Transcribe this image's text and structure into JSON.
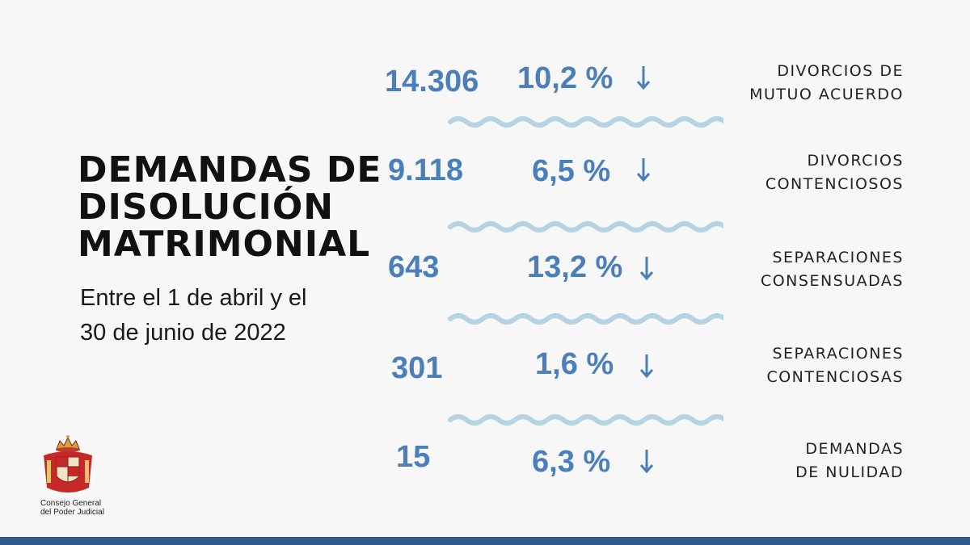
{
  "title": {
    "line1": "DEMANDAS DE",
    "line2": "DISOLUCIÓN",
    "line3": "MATRIMONIAL"
  },
  "subtitle": {
    "line1": "Entre el 1 de abril y el",
    "line2": "30 de junio de 2022"
  },
  "rows": [
    {
      "value": "14.306",
      "percent": "10,2 %",
      "trend": "down",
      "label_line1": "DIVORCIOS DE",
      "label_line2": "MUTUO ACUERDO"
    },
    {
      "value": "9.118",
      "percent": "6,5 %",
      "trend": "down",
      "label_line1": "DIVORCIOS",
      "label_line2": "CONTENCIOSOS"
    },
    {
      "value": "643",
      "percent": "13,2 %",
      "trend": "down",
      "label_line1": "SEPARACIONES",
      "label_line2": "CONSENSUADAS"
    },
    {
      "value": "301",
      "percent": "1,6 %",
      "trend": "down",
      "label_line1": "SEPARACIONES",
      "label_line2": "CONTENCIOSAS"
    },
    {
      "value": "15",
      "percent": "6,3 %",
      "trend": "down",
      "label_line1": "DEMANDAS",
      "label_line2": "DE NULIDAD"
    }
  ],
  "logo": {
    "line1": "Consejo General",
    "line2": "del Poder Judicial",
    "icon": "coat-of-arms-icon"
  },
  "colors": {
    "accent": "#4a7fbb",
    "wave": "#b5d3e2",
    "bar": "#2f5c8d",
    "background": "#f7f7f7"
  }
}
